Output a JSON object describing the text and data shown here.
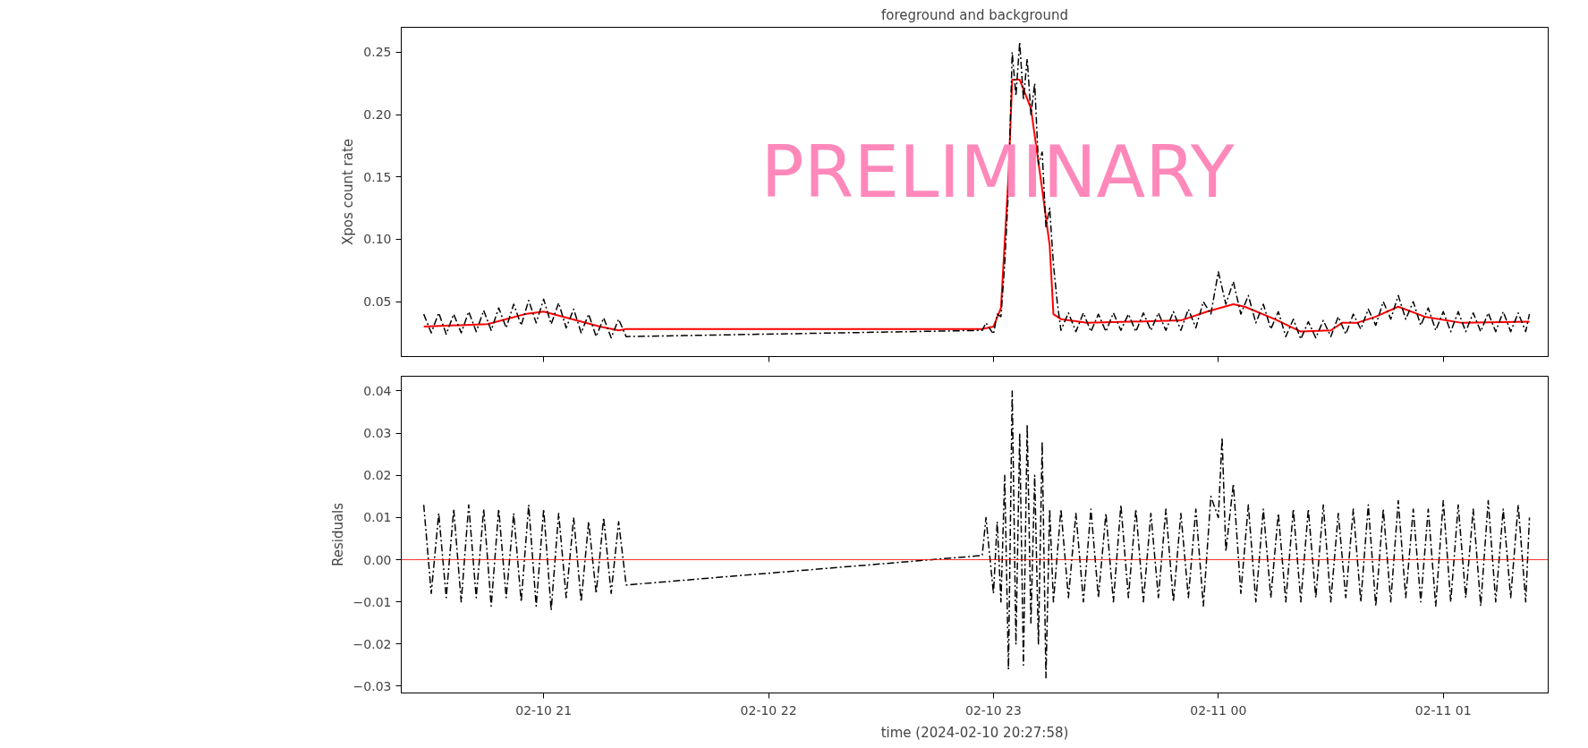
{
  "chart_data": [
    {
      "type": "line",
      "title": "foreground and background",
      "ylabel": "Xpos count rate",
      "annotations": [
        "PRELIMINARY"
      ],
      "grid": false,
      "tick_labels": "y",
      "marker": "none",
      "xlim": [
        "2024-02-10T20:22",
        "2024-02-11T01:28"
      ],
      "xticks": [
        {
          "value": "2024-02-10T21:00",
          "label": null
        },
        {
          "value": "2024-02-10T22:00",
          "label": null
        },
        {
          "value": "2024-02-10T23:00",
          "label": null
        },
        {
          "value": "2024-02-11T00:00",
          "label": null
        },
        {
          "value": "2024-02-11T01:00",
          "label": null
        }
      ],
      "ylim": [
        0.006,
        0.27
      ],
      "yticks": [
        0.05,
        {
          "value": 0.1,
          "label": "0.10"
        },
        0.15,
        {
          "value": 0.2,
          "label": "0.20"
        },
        0.25
      ],
      "series": [
        {
          "color": "#000000",
          "line_style": "dashed",
          "x": [
            "2024-02-10T20:28",
            "2024-02-10T20:30",
            "2024-02-10T20:32",
            "2024-02-10T20:34",
            "2024-02-10T20:36",
            "2024-02-10T20:38",
            "2024-02-10T20:40",
            "2024-02-10T20:42",
            "2024-02-10T20:44",
            "2024-02-10T20:46",
            "2024-02-10T20:48",
            "2024-02-10T20:50",
            "2024-02-10T20:52",
            "2024-02-10T20:54",
            "2024-02-10T20:56",
            "2024-02-10T20:58",
            "2024-02-10T21:00",
            "2024-02-10T21:02",
            "2024-02-10T21:04",
            "2024-02-10T21:06",
            "2024-02-10T21:08",
            "2024-02-10T21:10",
            "2024-02-10T21:12",
            "2024-02-10T21:14",
            "2024-02-10T21:16",
            "2024-02-10T21:18",
            "2024-02-10T21:20",
            "2024-02-10T21:22",
            "2024-02-10T22:57",
            "2024-02-10T22:58",
            "2024-02-10T23:00",
            "2024-02-10T23:01",
            "2024-02-10T23:02",
            "2024-02-10T23:03",
            "2024-02-10T23:04",
            "2024-02-10T23:05",
            "2024-02-10T23:06",
            "2024-02-10T23:07",
            "2024-02-10T23:08",
            "2024-02-10T23:09",
            "2024-02-10T23:10",
            "2024-02-10T23:11",
            "2024-02-10T23:12",
            "2024-02-10T23:13",
            "2024-02-10T23:14",
            "2024-02-10T23:15",
            "2024-02-10T23:16",
            "2024-02-10T23:17",
            "2024-02-10T23:18",
            "2024-02-10T23:20",
            "2024-02-10T23:22",
            "2024-02-10T23:24",
            "2024-02-10T23:26",
            "2024-02-10T23:28",
            "2024-02-10T23:30",
            "2024-02-10T23:32",
            "2024-02-10T23:34",
            "2024-02-10T23:36",
            "2024-02-10T23:38",
            "2024-02-10T23:40",
            "2024-02-10T23:42",
            "2024-02-10T23:44",
            "2024-02-10T23:46",
            "2024-02-10T23:48",
            "2024-02-10T23:50",
            "2024-02-10T23:52",
            "2024-02-10T23:54",
            "2024-02-10T23:56",
            "2024-02-10T23:58",
            "2024-02-11T00:00",
            "2024-02-11T00:02",
            "2024-02-11T00:04",
            "2024-02-11T00:06",
            "2024-02-11T00:08",
            "2024-02-11T00:10",
            "2024-02-11T00:12",
            "2024-02-11T00:14",
            "2024-02-11T00:16",
            "2024-02-11T00:18",
            "2024-02-11T00:20",
            "2024-02-11T00:22",
            "2024-02-11T00:24",
            "2024-02-11T00:26",
            "2024-02-11T00:28",
            "2024-02-11T00:30",
            "2024-02-11T00:32",
            "2024-02-11T00:34",
            "2024-02-11T00:36",
            "2024-02-11T00:38",
            "2024-02-11T00:40",
            "2024-02-11T00:42",
            "2024-02-11T00:44",
            "2024-02-11T00:46",
            "2024-02-11T00:48",
            "2024-02-11T00:50",
            "2024-02-11T00:52",
            "2024-02-11T00:54",
            "2024-02-11T00:56",
            "2024-02-11T00:58",
            "2024-02-11T01:00",
            "2024-02-11T01:02",
            "2024-02-11T01:04",
            "2024-02-11T01:06",
            "2024-02-11T01:08",
            "2024-02-11T01:10",
            "2024-02-11T01:12",
            "2024-02-11T01:14",
            "2024-02-11T01:16",
            "2024-02-11T01:18",
            "2024-02-11T01:20",
            "2024-02-11T01:22",
            "2024-02-11T01:23"
          ],
          "values": [
            0.04,
            0.025,
            0.041,
            0.024,
            0.04,
            0.025,
            0.042,
            0.026,
            0.043,
            0.027,
            0.045,
            0.029,
            0.048,
            0.031,
            0.051,
            0.033,
            0.052,
            0.032,
            0.049,
            0.029,
            0.044,
            0.025,
            0.04,
            0.022,
            0.037,
            0.021,
            0.036,
            0.022,
            0.027,
            0.033,
            0.024,
            0.04,
            0.038,
            0.08,
            0.14,
            0.25,
            0.215,
            0.258,
            0.212,
            0.245,
            0.2,
            0.225,
            0.16,
            0.17,
            0.11,
            0.125,
            0.08,
            0.05,
            0.027,
            0.041,
            0.026,
            0.041,
            0.026,
            0.04,
            0.026,
            0.041,
            0.027,
            0.04,
            0.026,
            0.041,
            0.027,
            0.041,
            0.027,
            0.042,
            0.027,
            0.044,
            0.029,
            0.05,
            0.04,
            0.074,
            0.048,
            0.066,
            0.04,
            0.055,
            0.033,
            0.048,
            0.028,
            0.042,
            0.022,
            0.036,
            0.02,
            0.034,
            0.021,
            0.035,
            0.022,
            0.038,
            0.024,
            0.04,
            0.028,
            0.044,
            0.031,
            0.05,
            0.036,
            0.055,
            0.036,
            0.05,
            0.031,
            0.045,
            0.027,
            0.042,
            0.026,
            0.042,
            0.026,
            0.041,
            0.026,
            0.041,
            0.026,
            0.042,
            0.026,
            0.041,
            0.026,
            0.04
          ]
        },
        {
          "color": "#ff0000",
          "line_style": "solid",
          "x": [
            "2024-02-10T20:28",
            "2024-02-10T20:45",
            "2024-02-10T20:55",
            "2024-02-10T21:00",
            "2024-02-10T21:15",
            "2024-02-10T21:20",
            "2024-02-10T21:22",
            "2024-02-10T22:57",
            "2024-02-10T23:00",
            "2024-02-10T23:02",
            "2024-02-10T23:04",
            "2024-02-10T23:05",
            "2024-02-10T23:07",
            "2024-02-10T23:10",
            "2024-02-10T23:13",
            "2024-02-10T23:15",
            "2024-02-10T23:16",
            "2024-02-10T23:18",
            "2024-02-10T23:25",
            "2024-02-10T23:50",
            "2024-02-10T23:57",
            "2024-02-11T00:04",
            "2024-02-11T00:07",
            "2024-02-11T00:15",
            "2024-02-11T00:22",
            "2024-02-11T00:30",
            "2024-02-11T00:33",
            "2024-02-11T00:37",
            "2024-02-11T00:42",
            "2024-02-11T00:48",
            "2024-02-11T00:55",
            "2024-02-11T01:05",
            "2024-02-11T01:23"
          ],
          "values": [
            0.03,
            0.032,
            0.04,
            0.042,
            0.03,
            0.027,
            0.028,
            0.028,
            0.03,
            0.045,
            0.15,
            0.228,
            0.228,
            0.205,
            0.14,
            0.095,
            0.04,
            0.036,
            0.033,
            0.035,
            0.042,
            0.048,
            0.046,
            0.036,
            0.026,
            0.027,
            0.033,
            0.033,
            0.038,
            0.046,
            0.038,
            0.033,
            0.034
          ]
        }
      ]
    },
    {
      "type": "line",
      "ylabel": "Residuals",
      "xlabel": "time (2024-02-10 20:27:58)",
      "grid": false,
      "marker": "none",
      "xlim": [
        "2024-02-10T20:22",
        "2024-02-11T01:28"
      ],
      "xticks": [
        {
          "value": "2024-02-10T21:00",
          "label": "02-10 21"
        },
        {
          "value": "2024-02-10T22:00",
          "label": "02-10 22"
        },
        {
          "value": "2024-02-10T23:00",
          "label": "02-10 23"
        },
        {
          "value": "2024-02-11T00:00",
          "label": "02-11 00"
        },
        {
          "value": "2024-02-11T01:00",
          "label": "02-11 01"
        }
      ],
      "ylim": [
        -0.0316,
        0.0435
      ],
      "yticks": [
        {
          "value": -0.03,
          "label": "−0.03"
        },
        {
          "value": -0.02,
          "label": "−0.02"
        },
        {
          "value": -0.01,
          "label": "−0.01"
        },
        {
          "value": 0,
          "label": "0.00"
        },
        {
          "value": 0.01,
          "label": "0.01"
        },
        {
          "value": 0.02,
          "label": "0.02"
        },
        {
          "value": 0.03,
          "label": "0.03"
        },
        {
          "value": 0.04,
          "label": "0.04"
        }
      ],
      "ref_lines": [
        {
          "axis": "y",
          "value": 0,
          "color": "#ff0000"
        }
      ],
      "series": [
        {
          "color": "#000000",
          "line_style": "dashed",
          "x": [
            "2024-02-10T20:28",
            "2024-02-10T20:30",
            "2024-02-10T20:32",
            "2024-02-10T20:34",
            "2024-02-10T20:36",
            "2024-02-10T20:38",
            "2024-02-10T20:40",
            "2024-02-10T20:42",
            "2024-02-10T20:44",
            "2024-02-10T20:46",
            "2024-02-10T20:48",
            "2024-02-10T20:50",
            "2024-02-10T20:52",
            "2024-02-10T20:54",
            "2024-02-10T20:56",
            "2024-02-10T20:58",
            "2024-02-10T21:00",
            "2024-02-10T21:02",
            "2024-02-10T21:04",
            "2024-02-10T21:06",
            "2024-02-10T21:08",
            "2024-02-10T21:10",
            "2024-02-10T21:12",
            "2024-02-10T21:14",
            "2024-02-10T21:16",
            "2024-02-10T21:18",
            "2024-02-10T21:20",
            "2024-02-10T21:22",
            "2024-02-10T22:57",
            "2024-02-10T22:58",
            "2024-02-10T23:00",
            "2024-02-10T23:01",
            "2024-02-10T23:02",
            "2024-02-10T23:03",
            "2024-02-10T23:04",
            "2024-02-10T23:05",
            "2024-02-10T23:06",
            "2024-02-10T23:07",
            "2024-02-10T23:08",
            "2024-02-10T23:09",
            "2024-02-10T23:10",
            "2024-02-10T23:11",
            "2024-02-10T23:12",
            "2024-02-10T23:13",
            "2024-02-10T23:14",
            "2024-02-10T23:15",
            "2024-02-10T23:16",
            "2024-02-10T23:18",
            "2024-02-10T23:20",
            "2024-02-10T23:22",
            "2024-02-10T23:24",
            "2024-02-10T23:26",
            "2024-02-10T23:28",
            "2024-02-10T23:30",
            "2024-02-10T23:32",
            "2024-02-10T23:34",
            "2024-02-10T23:36",
            "2024-02-10T23:38",
            "2024-02-10T23:40",
            "2024-02-10T23:42",
            "2024-02-10T23:44",
            "2024-02-10T23:46",
            "2024-02-10T23:48",
            "2024-02-10T23:50",
            "2024-02-10T23:52",
            "2024-02-10T23:54",
            "2024-02-10T23:56",
            "2024-02-10T23:58",
            "2024-02-11T00:00",
            "2024-02-11T00:01",
            "2024-02-11T00:02",
            "2024-02-11T00:04",
            "2024-02-11T00:06",
            "2024-02-11T00:08",
            "2024-02-11T00:10",
            "2024-02-11T00:12",
            "2024-02-11T00:14",
            "2024-02-11T00:16",
            "2024-02-11T00:18",
            "2024-02-11T00:20",
            "2024-02-11T00:22",
            "2024-02-11T00:24",
            "2024-02-11T00:26",
            "2024-02-11T00:28",
            "2024-02-11T00:30",
            "2024-02-11T00:32",
            "2024-02-11T00:34",
            "2024-02-11T00:36",
            "2024-02-11T00:38",
            "2024-02-11T00:40",
            "2024-02-11T00:42",
            "2024-02-11T00:44",
            "2024-02-11T00:46",
            "2024-02-11T00:48",
            "2024-02-11T00:50",
            "2024-02-11T00:52",
            "2024-02-11T00:54",
            "2024-02-11T00:56",
            "2024-02-11T00:58",
            "2024-02-11T01:00",
            "2024-02-11T01:02",
            "2024-02-11T01:04",
            "2024-02-11T01:06",
            "2024-02-11T01:08",
            "2024-02-11T01:10",
            "2024-02-11T01:12",
            "2024-02-11T01:14",
            "2024-02-11T01:16",
            "2024-02-11T01:18",
            "2024-02-11T01:20",
            "2024-02-11T01:22",
            "2024-02-11T01:23"
          ],
          "values": [
            0.013,
            -0.008,
            0.011,
            -0.009,
            0.012,
            -0.01,
            0.013,
            -0.009,
            0.012,
            -0.011,
            0.012,
            -0.009,
            0.011,
            -0.01,
            0.013,
            -0.011,
            0.012,
            -0.012,
            0.011,
            -0.009,
            0.01,
            -0.01,
            0.009,
            -0.008,
            0.01,
            -0.008,
            0.009,
            -0.006,
            0.001,
            0.01,
            -0.008,
            0.009,
            -0.01,
            0.02,
            -0.026,
            0.04,
            -0.02,
            0.03,
            -0.025,
            0.032,
            -0.015,
            0.02,
            -0.02,
            0.028,
            -0.028,
            0.012,
            -0.01,
            0.012,
            -0.009,
            0.011,
            -0.01,
            0.012,
            -0.009,
            0.011,
            -0.01,
            0.013,
            -0.009,
            0.012,
            -0.01,
            0.011,
            -0.009,
            0.012,
            -0.01,
            0.011,
            -0.009,
            0.012,
            -0.011,
            0.015,
            0.01,
            0.029,
            0.002,
            0.018,
            -0.008,
            0.013,
            -0.01,
            0.012,
            -0.009,
            0.011,
            -0.01,
            0.012,
            -0.01,
            0.012,
            -0.009,
            0.013,
            -0.01,
            0.011,
            -0.009,
            0.012,
            -0.01,
            0.013,
            -0.011,
            0.012,
            -0.01,
            0.014,
            -0.009,
            0.012,
            -0.01,
            0.012,
            -0.011,
            0.014,
            -0.01,
            0.013,
            -0.009,
            0.012,
            -0.011,
            0.014,
            -0.01,
            0.012,
            -0.009,
            0.013,
            -0.01,
            0.01
          ]
        }
      ]
    }
  ]
}
